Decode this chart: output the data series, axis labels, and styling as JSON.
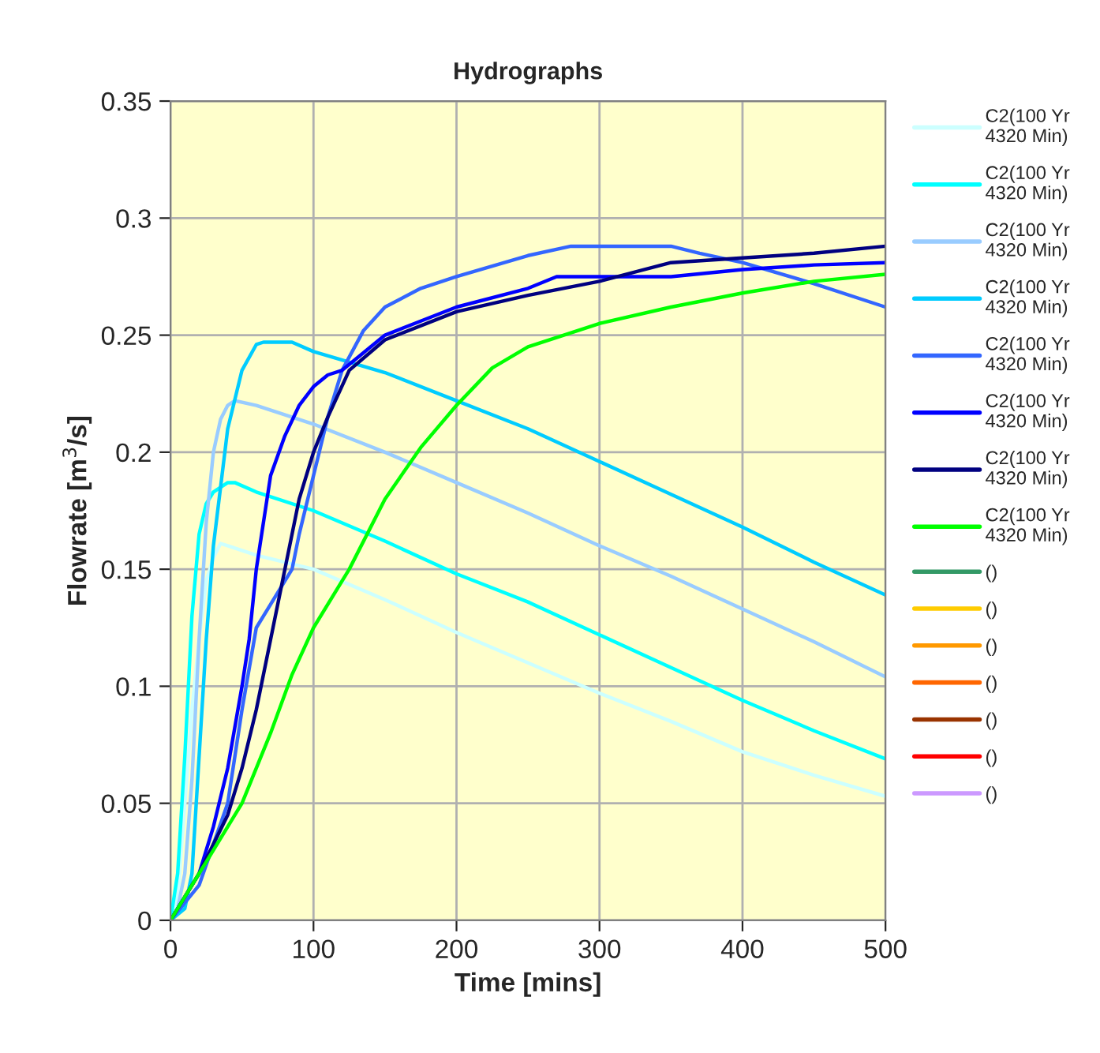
{
  "chart_data": {
    "type": "line",
    "title": "Hydrographs",
    "xlabel": "Time [mins]",
    "ylabel": "Flowrate [m$^{3}$/s]",
    "xlim": [
      0,
      500
    ],
    "xticks": [
      0,
      100,
      200,
      300,
      400,
      500
    ],
    "ylim": [
      0,
      0.35
    ],
    "yticks": [
      0,
      0.05,
      0.1,
      0.15,
      0.2,
      0.25,
      0.3,
      0.35
    ],
    "grid": true,
    "legend": "right",
    "marker": "none",
    "line_style": "solid",
    "series": [
      {
        "name": "C2(100 Yr\n4320 Min)",
        "color": "#ccffff",
        "x": [
          0,
          5,
          10,
          15,
          20,
          25,
          30,
          35,
          40,
          60,
          100,
          150,
          200,
          250,
          300,
          350,
          400,
          450,
          500
        ],
        "values": [
          0,
          0.01,
          0.05,
          0.09,
          0.12,
          0.145,
          0.155,
          0.161,
          0.16,
          0.156,
          0.15,
          0.137,
          0.123,
          0.11,
          0.097,
          0.085,
          0.072,
          0.062,
          0.053
        ]
      },
      {
        "name": "C2(100 Yr\n4320 Min)",
        "color": "#00ffff",
        "x": [
          0,
          5,
          10,
          15,
          20,
          25,
          30,
          40,
          45,
          60,
          100,
          150,
          200,
          250,
          300,
          350,
          400,
          450,
          500
        ],
        "values": [
          0,
          0.02,
          0.07,
          0.13,
          0.165,
          0.178,
          0.183,
          0.187,
          0.187,
          0.183,
          0.175,
          0.162,
          0.148,
          0.136,
          0.122,
          0.108,
          0.094,
          0.081,
          0.069
        ]
      },
      {
        "name": "C2(100 Yr\n4320 Min)",
        "color": "#99ccff",
        "x": [
          0,
          5,
          10,
          15,
          20,
          25,
          30,
          35,
          40,
          45,
          60,
          100,
          150,
          200,
          250,
          300,
          350,
          400,
          450,
          500
        ],
        "values": [
          0,
          0.005,
          0.02,
          0.06,
          0.12,
          0.17,
          0.2,
          0.214,
          0.22,
          0.222,
          0.22,
          0.212,
          0.2,
          0.187,
          0.174,
          0.16,
          0.147,
          0.133,
          0.119,
          0.104
        ]
      },
      {
        "name": "C2(100 Yr\n4320 Min)",
        "color": "#00ccff",
        "x": [
          0,
          10,
          15,
          20,
          25,
          30,
          40,
          50,
          60,
          65,
          85,
          100,
          150,
          200,
          250,
          300,
          350,
          400,
          450,
          500
        ],
        "values": [
          0,
          0.005,
          0.02,
          0.07,
          0.12,
          0.16,
          0.21,
          0.235,
          0.246,
          0.247,
          0.247,
          0.243,
          0.234,
          0.222,
          0.21,
          0.196,
          0.182,
          0.168,
          0.153,
          0.139
        ]
      },
      {
        "name": "C2(100 Yr\n4320 Min)",
        "color": "#3366ff",
        "x": [
          0,
          20,
          40,
          50,
          60,
          70,
          85,
          90,
          100,
          110,
          120,
          135,
          150,
          175,
          200,
          250,
          280,
          350,
          370,
          400,
          450,
          500
        ],
        "values": [
          0,
          0.015,
          0.05,
          0.09,
          0.125,
          0.135,
          0.15,
          0.165,
          0.19,
          0.215,
          0.235,
          0.252,
          0.262,
          0.27,
          0.275,
          0.284,
          0.288,
          0.288,
          0.285,
          0.281,
          0.272,
          0.262
        ]
      },
      {
        "name": "C2(100 Yr\n4320 Min)",
        "color": "#0000ff",
        "x": [
          0,
          20,
          30,
          40,
          50,
          55,
          60,
          70,
          80,
          90,
          100,
          110,
          120,
          130,
          150,
          175,
          200,
          250,
          270,
          350,
          400,
          450,
          500
        ],
        "values": [
          0,
          0.02,
          0.04,
          0.065,
          0.1,
          0.12,
          0.15,
          0.19,
          0.207,
          0.22,
          0.228,
          0.233,
          0.235,
          0.24,
          0.25,
          0.256,
          0.262,
          0.27,
          0.275,
          0.275,
          0.278,
          0.28,
          0.281
        ]
      },
      {
        "name": "C2(100 Yr\n4320 Min)",
        "color": "#000080",
        "x": [
          0,
          20,
          40,
          50,
          60,
          70,
          80,
          90,
          100,
          110,
          125,
          150,
          200,
          250,
          300,
          350,
          400,
          450,
          500
        ],
        "values": [
          0,
          0.02,
          0.045,
          0.065,
          0.09,
          0.12,
          0.15,
          0.18,
          0.2,
          0.215,
          0.235,
          0.248,
          0.26,
          0.267,
          0.273,
          0.281,
          0.283,
          0.285,
          0.288
        ]
      },
      {
        "name": "C2(100 Yr\n4320 Min)",
        "color": "#00ff00",
        "x": [
          0,
          25,
          50,
          70,
          85,
          100,
          125,
          150,
          175,
          200,
          225,
          250,
          300,
          350,
          400,
          450,
          500
        ],
        "values": [
          0,
          0.025,
          0.05,
          0.08,
          0.105,
          0.125,
          0.15,
          0.18,
          0.202,
          0.22,
          0.236,
          0.245,
          0.255,
          0.262,
          0.268,
          0.273,
          0.276
        ]
      },
      {
        "name": "()",
        "color": "#339966"
      },
      {
        "name": "()",
        "color": "#ffcc00"
      },
      {
        "name": "()",
        "color": "#ff9900"
      },
      {
        "name": "()",
        "color": "#ff6600"
      },
      {
        "name": "()",
        "color": "#993300"
      },
      {
        "name": "()",
        "color": "#ff0000"
      },
      {
        "name": "()",
        "color": "#cc99ff"
      }
    ]
  }
}
